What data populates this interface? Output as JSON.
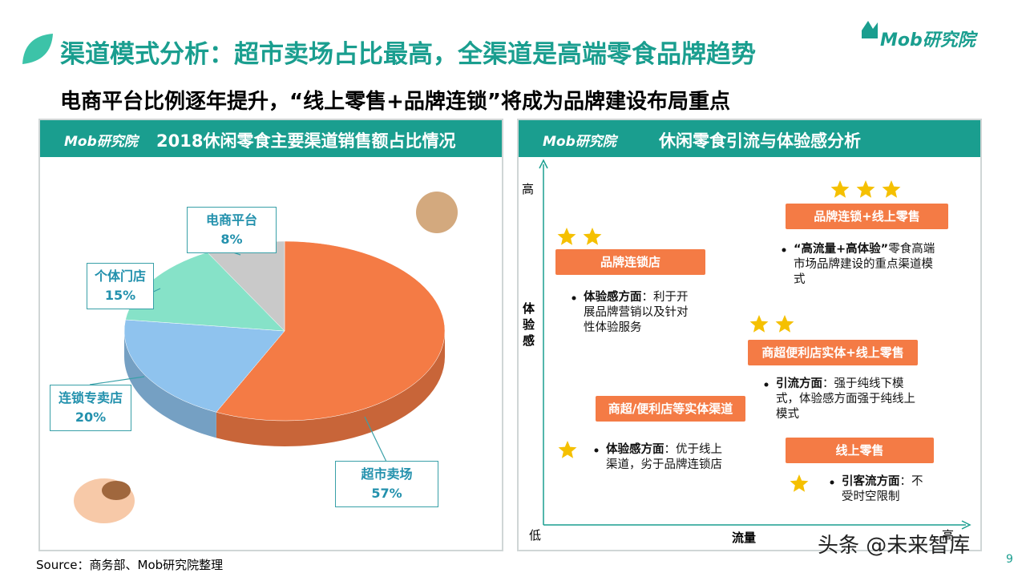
{
  "header": {
    "title": "渠道模式分析：超市卖场占比最高，全渠道是高端零食品牌趋势",
    "subtitle": "电商平台比例逐年提升，“线上零售+品牌连锁”将成为品牌建设布局重点",
    "brand": "Mob研究院"
  },
  "chart_data": {
    "type": "pie",
    "title": "2018休闲零食主要渠道销售额占比情况",
    "categories": [
      "超市卖场",
      "连锁专卖店",
      "个体门店",
      "电商平台"
    ],
    "values": [
      57,
      20,
      15,
      8
    ],
    "value_labels": [
      "57%",
      "20%",
      "15%",
      "8%"
    ],
    "colors": [
      "#f47b45",
      "#8fc3ee",
      "#86e2c8",
      "#c9c9c9"
    ]
  },
  "analysis": {
    "title": "休闲零食引流与体验感分析",
    "y_axis": {
      "label": "体验感",
      "high": "高"
    },
    "x_axis": {
      "label": "流量",
      "low": "低",
      "high": "高"
    },
    "channels": [
      {
        "name": "品牌连锁+线上零售",
        "stars": 3,
        "bold": "“高流量+高体验”",
        "text": "零食高端市场品牌建设的重点渠道模式"
      },
      {
        "name": "品牌连锁店",
        "stars": 2,
        "bold": "体验感方面",
        "text": "：利于开展品牌营销以及针对性体验服务"
      },
      {
        "name": "商超便利店实体+线上零售",
        "stars": 2,
        "bold": "引流方面",
        "text": "：强于纯线下模式，体验感方面强于纯线上模式"
      },
      {
        "name": "商超/便利店等实体渠道",
        "stars": 1,
        "bold": "体验感方面",
        "text": "：优于线上渠道，劣于品牌连锁店"
      },
      {
        "name": "线上零售",
        "stars": 1,
        "bold": "引客流方面",
        "text": "：不受时空限制"
      }
    ]
  },
  "footer": {
    "source": "Source：商务部、Mob研究院整理",
    "watermark": "头条 @未来智库",
    "page": "9"
  }
}
